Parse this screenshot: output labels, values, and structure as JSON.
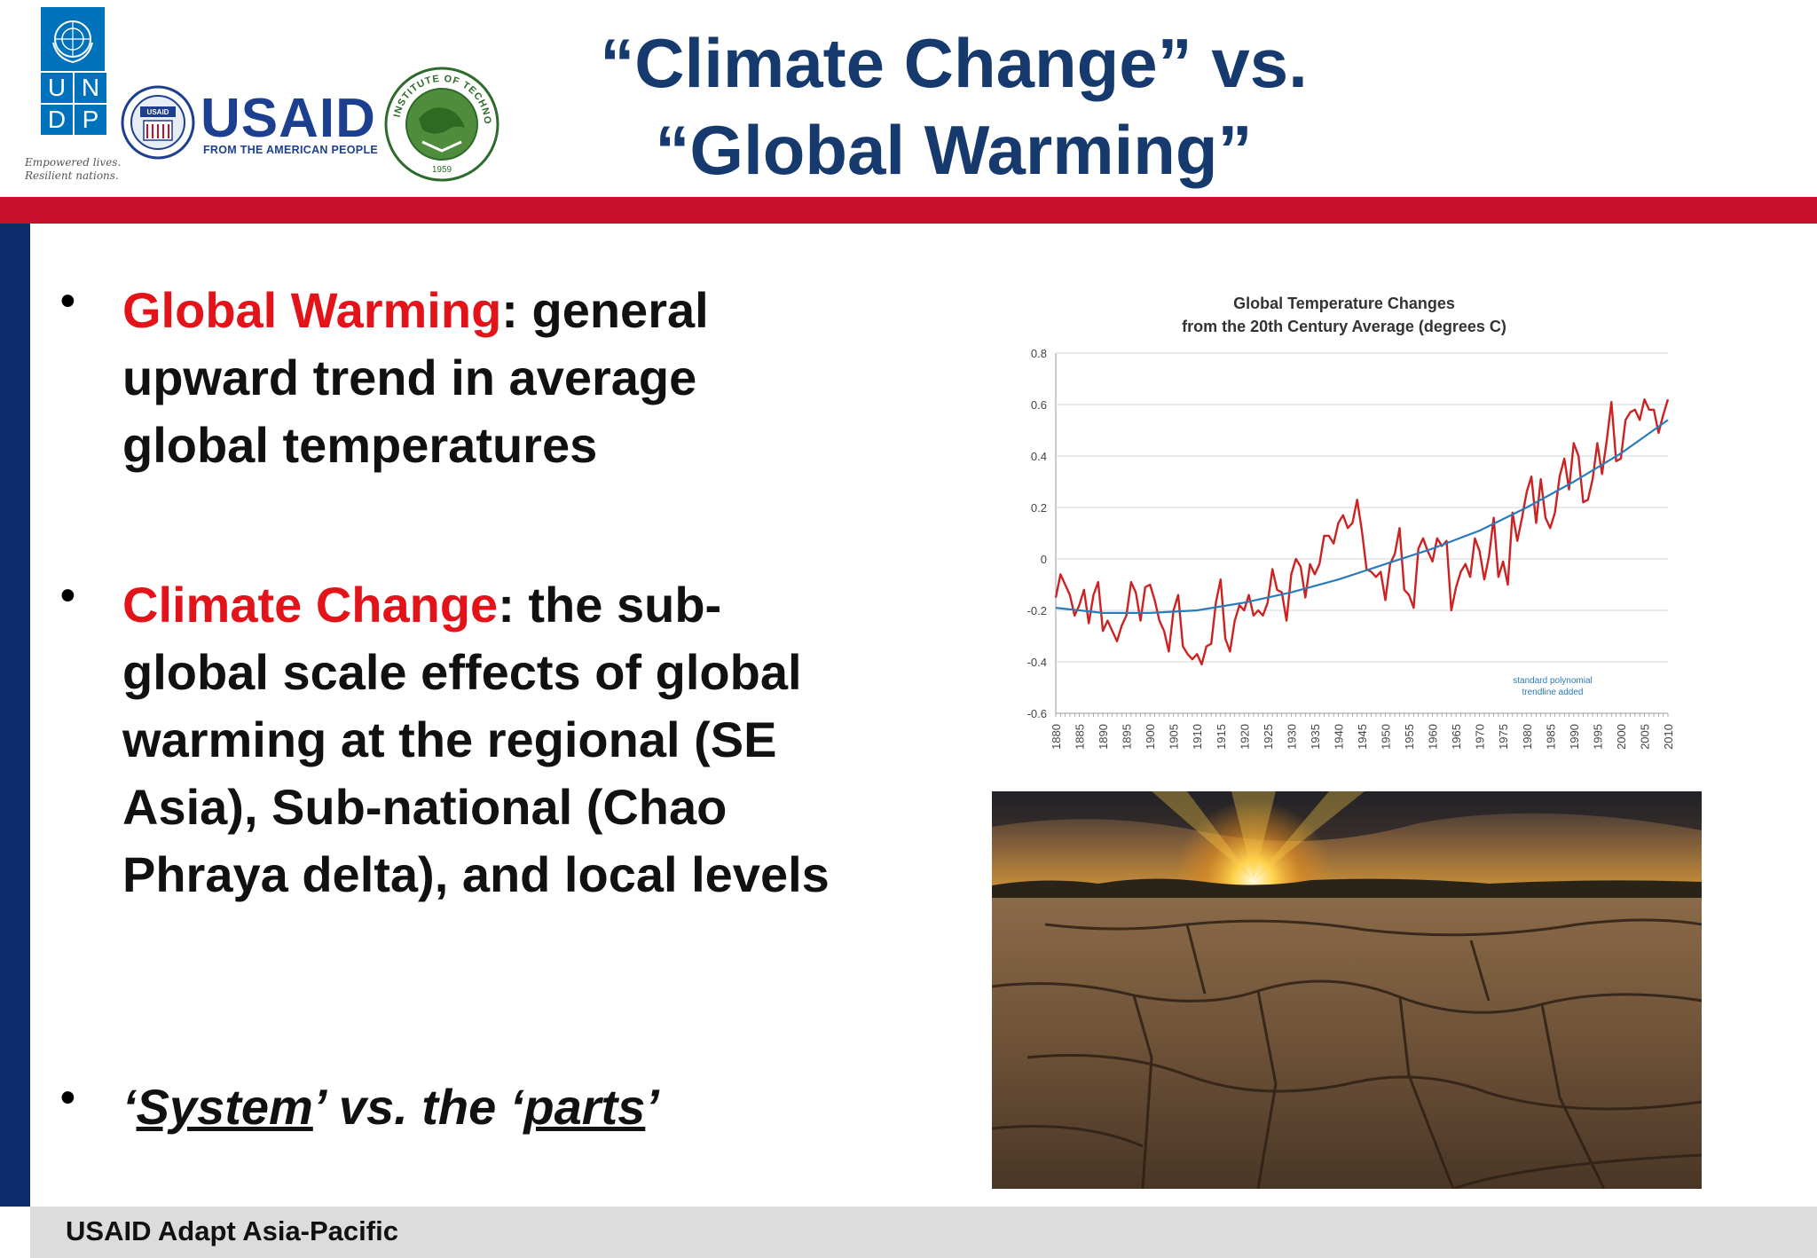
{
  "header": {
    "title_line1": "“Climate Change” vs.",
    "title_line2": "“Global Warming”",
    "logos": {
      "undp_letters": [
        "U",
        "N",
        "D",
        "P"
      ],
      "undp_tagline_1": "Empowered lives.",
      "undp_tagline_2": "Resilient nations.",
      "usaid_name": "USAID",
      "usaid_subtitle": "FROM THE AMERICAN PEOPLE",
      "usaid_seal_text": "USAID",
      "ait_text": "ASIAN INSTITUTE OF TECHNOLOGY",
      "ait_year": "1959"
    }
  },
  "bullets": [
    {
      "term": "Global Warming",
      "text": ": general upward trend in average global temperatures"
    },
    {
      "term": "Climate Change",
      "text": ": the sub-global scale effects of global warming at the regional (SE Asia), Sub-national (Chao Phraya delta), and local levels"
    },
    {
      "part1": "‘",
      "system": "System",
      "part2": "’ vs. the ‘",
      "parts": "parts",
      "part3": "’"
    }
  ],
  "footer": {
    "text": "USAID Adapt Asia-Pacific"
  },
  "colors": {
    "title": "#163a6e",
    "term": "#e3131a",
    "band": "#c8102e",
    "sidebar": "#0d2c6b",
    "series": "#cc2222",
    "trend": "#2b7bb9"
  },
  "chart_data": {
    "type": "line",
    "title": "Global Temperature Changes",
    "subtitle": "from the 20th Century Average (degrees C)",
    "annotation_1": "standard polynomial",
    "annotation_2": "trendline added",
    "ylim": [
      -0.6,
      0.8
    ],
    "yticks": [
      0.8,
      0.6,
      0.4,
      0.2,
      0,
      -0.2,
      -0.4,
      -0.6
    ],
    "ytick_labels": [
      "0.8",
      "0.6",
      "0.4",
      "0.2",
      "0",
      "-0.2",
      "-0.4",
      "-0.6"
    ],
    "xlim": [
      1880,
      2010
    ],
    "xticks": [
      1880,
      1885,
      1890,
      1895,
      1900,
      1905,
      1910,
      1915,
      1920,
      1925,
      1930,
      1935,
      1940,
      1945,
      1950,
      1955,
      1960,
      1965,
      1970,
      1975,
      1980,
      1985,
      1990,
      1995,
      2000,
      2005,
      2010
    ],
    "grid": true,
    "series": [
      {
        "kind": "annual",
        "x": [
          1880,
          1881,
          1882,
          1883,
          1884,
          1885,
          1886,
          1887,
          1888,
          1889,
          1890,
          1891,
          1892,
          1893,
          1894,
          1895,
          1896,
          1897,
          1898,
          1899,
          1900,
          1901,
          1902,
          1903,
          1904,
          1905,
          1906,
          1907,
          1908,
          1909,
          1910,
          1911,
          1912,
          1913,
          1914,
          1915,
          1916,
          1917,
          1918,
          1919,
          1920,
          1921,
          1922,
          1923,
          1924,
          1925,
          1926,
          1927,
          1928,
          1929,
          1930,
          1931,
          1932,
          1933,
          1934,
          1935,
          1936,
          1937,
          1938,
          1939,
          1940,
          1941,
          1942,
          1943,
          1944,
          1945,
          1946,
          1947,
          1948,
          1949,
          1950,
          1951,
          1952,
          1953,
          1954,
          1955,
          1956,
          1957,
          1958,
          1959,
          1960,
          1961,
          1962,
          1963,
          1964,
          1965,
          1966,
          1967,
          1968,
          1969,
          1970,
          1971,
          1972,
          1973,
          1974,
          1975,
          1976,
          1977,
          1978,
          1979,
          1980,
          1981,
          1982,
          1983,
          1984,
          1985,
          1986,
          1987,
          1988,
          1989,
          1990,
          1991,
          1992,
          1993,
          1994,
          1995,
          1996,
          1997,
          1998,
          1999,
          2000,
          2001,
          2002,
          2003,
          2004,
          2005,
          2006,
          2007,
          2008,
          2009,
          2010
        ],
        "values": [
          -0.15,
          -0.06,
          -0.1,
          -0.14,
          -0.22,
          -0.18,
          -0.12,
          -0.25,
          -0.14,
          -0.09,
          -0.28,
          -0.24,
          -0.28,
          -0.32,
          -0.26,
          -0.22,
          -0.09,
          -0.13,
          -0.24,
          -0.11,
          -0.1,
          -0.16,
          -0.24,
          -0.28,
          -0.36,
          -0.2,
          -0.14,
          -0.34,
          -0.37,
          -0.39,
          -0.37,
          -0.41,
          -0.34,
          -0.33,
          -0.17,
          -0.08,
          -0.31,
          -0.36,
          -0.24,
          -0.18,
          -0.2,
          -0.14,
          -0.22,
          -0.2,
          -0.22,
          -0.17,
          -0.04,
          -0.12,
          -0.13,
          -0.24,
          -0.06,
          0.0,
          -0.03,
          -0.15,
          -0.02,
          -0.06,
          -0.02,
          0.09,
          0.09,
          0.06,
          0.14,
          0.17,
          0.12,
          0.14,
          0.23,
          0.11,
          -0.04,
          -0.05,
          -0.07,
          -0.05,
          -0.16,
          -0.02,
          0.02,
          0.12,
          -0.12,
          -0.14,
          -0.19,
          0.04,
          0.08,
          0.03,
          -0.01,
          0.08,
          0.05,
          0.07,
          -0.2,
          -0.11,
          -0.05,
          -0.02,
          -0.07,
          0.08,
          0.03,
          -0.08,
          0.01,
          0.16,
          -0.07,
          -0.01,
          -0.1,
          0.18,
          0.07,
          0.16,
          0.26,
          0.32,
          0.14,
          0.31,
          0.16,
          0.12,
          0.18,
          0.32,
          0.39,
          0.27,
          0.45,
          0.4,
          0.22,
          0.23,
          0.31,
          0.45,
          0.33,
          0.46,
          0.61,
          0.38,
          0.39,
          0.54,
          0.57,
          0.58,
          0.54,
          0.62,
          0.58,
          0.58,
          0.49,
          0.56,
          0.62
        ]
      },
      {
        "kind": "trend",
        "x": [
          1880,
          1890,
          1900,
          1910,
          1920,
          1930,
          1940,
          1950,
          1960,
          1970,
          1980,
          1990,
          2000,
          2010
        ],
        "values": [
          -0.19,
          -0.21,
          -0.21,
          -0.2,
          -0.17,
          -0.13,
          -0.08,
          -0.02,
          0.04,
          0.11,
          0.2,
          0.3,
          0.41,
          0.54
        ]
      }
    ]
  }
}
